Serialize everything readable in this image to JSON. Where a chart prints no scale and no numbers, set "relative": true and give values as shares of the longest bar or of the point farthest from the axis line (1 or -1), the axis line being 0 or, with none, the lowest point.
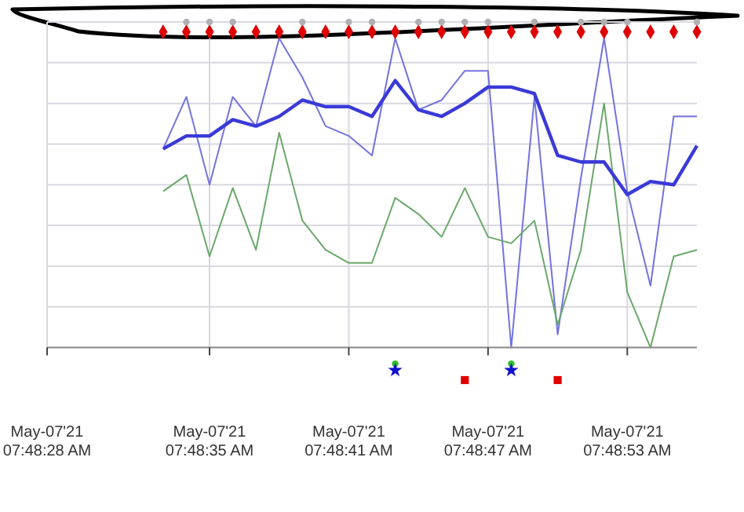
{
  "chart_data": {
    "type": "line",
    "relative": true,
    "grid": true,
    "categories": [
      "May-07'21 07:48:28 AM",
      null,
      null,
      null,
      null,
      null,
      null,
      "May-07'21 07:48:35 AM",
      null,
      null,
      null,
      null,
      null,
      "May-07'21 07:48:41 AM",
      null,
      null,
      null,
      null,
      null,
      "May-07'21 07:48:47 AM",
      null,
      null,
      null,
      null,
      null,
      "May-07'21 07:48:53 AM",
      null,
      null,
      null
    ],
    "series": [
      {
        "color": "#7373e0",
        "values": [
          null,
          null,
          null,
          null,
          null,
          0.61,
          0.77,
          0.5,
          0.77,
          0.68,
          0.95,
          0.83,
          0.68,
          0.65,
          0.59,
          0.95,
          0.73,
          0.76,
          0.85,
          0.85,
          0,
          0.77,
          0.04,
          0.52,
          0.95,
          0.48,
          0.19,
          0.71,
          0.71
        ]
      },
      {
        "color": "#6aa86a",
        "values": [
          null,
          null,
          null,
          null,
          null,
          0.48,
          0.53,
          0.28,
          0.49,
          0.3,
          0.66,
          0.39,
          0.3,
          0.26,
          0.26,
          0.46,
          0.41,
          0.34,
          0.49,
          0.34,
          0.32,
          0.39,
          0.07,
          0.3,
          0.75,
          0.17,
          0,
          0.28,
          0.3
        ]
      },
      {
        "color": "#3a3ad8",
        "values": [
          null,
          null,
          null,
          null,
          null,
          0.61,
          0.65,
          0.65,
          0.7,
          0.68,
          0.71,
          0.76,
          0.74,
          0.74,
          0.71,
          0.82,
          0.73,
          0.71,
          0.75,
          0.8,
          0.8,
          0.78,
          0.59,
          0.57,
          0.57,
          0.47,
          0.51,
          0.5,
          0.62
        ]
      },
      {
        "type": "scatter",
        "marker": "diamond",
        "color": "#e00000",
        "values": [
          null,
          null,
          null,
          null,
          null,
          0.97,
          0.97,
          0.97,
          0.97,
          0.97,
          0.97,
          0.97,
          0.97,
          0.97,
          0.97,
          0.97,
          0.97,
          0.97,
          0.97,
          0.97,
          0.97,
          0.97,
          0.97,
          0.97,
          0.97,
          0.97,
          0.97,
          0.97,
          0.97
        ]
      },
      {
        "type": "scatter",
        "marker": "circle",
        "color": "#b0b0b0",
        "values": [
          null,
          null,
          null,
          null,
          null,
          null,
          1,
          1,
          1,
          null,
          null,
          1,
          null,
          1,
          1,
          null,
          1,
          1,
          1,
          1,
          null,
          1,
          null,
          1,
          1,
          1,
          null,
          null,
          1
        ]
      },
      {
        "type": "scatter",
        "marker": "circle",
        "color": "#30c030",
        "values": [
          null,
          null,
          null,
          null,
          null,
          null,
          null,
          null,
          null,
          null,
          null,
          null,
          null,
          null,
          null,
          -0.05,
          null,
          null,
          null,
          null,
          -0.05,
          null,
          null,
          null,
          null,
          null,
          null,
          null,
          null
        ]
      },
      {
        "type": "scatter",
        "marker": "star",
        "color": "#1010d0",
        "values": [
          null,
          null,
          null,
          null,
          null,
          null,
          null,
          null,
          null,
          null,
          null,
          null,
          null,
          null,
          null,
          -0.07,
          null,
          null,
          null,
          null,
          -0.07,
          null,
          null,
          null,
          null,
          null,
          null,
          null,
          null
        ]
      },
      {
        "type": "scatter",
        "marker": "square",
        "color": "#e00000",
        "values": [
          null,
          null,
          null,
          null,
          null,
          null,
          null,
          null,
          null,
          null,
          null,
          null,
          null,
          null,
          null,
          null,
          null,
          null,
          -0.1,
          null,
          null,
          null,
          -0.1,
          null,
          null,
          null,
          null,
          null,
          null
        ]
      }
    ]
  }
}
